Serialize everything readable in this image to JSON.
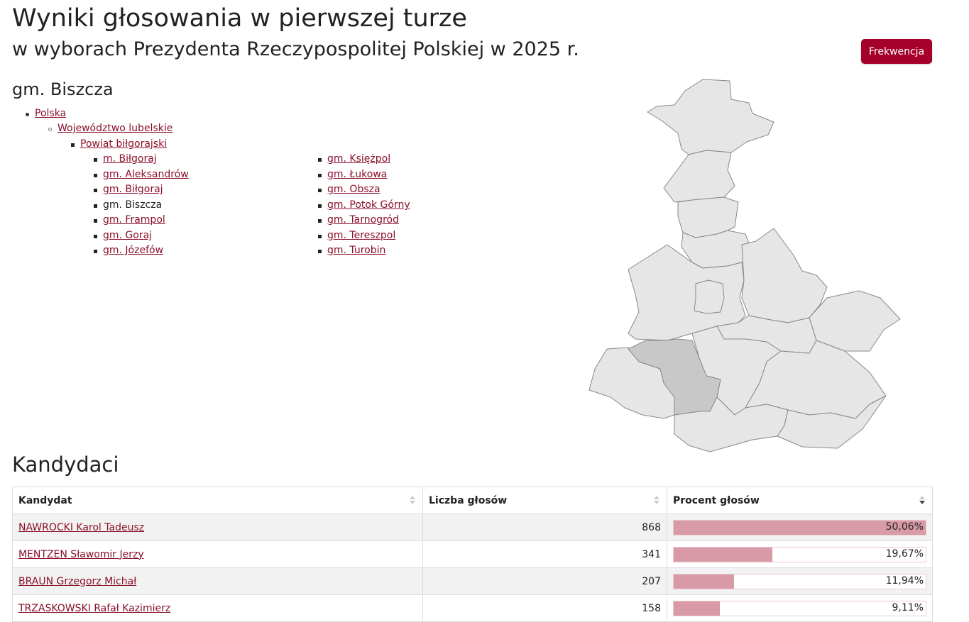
{
  "header": {
    "title_line1": "Wyniki głosowania w pierwszej turze",
    "title_line2": "w wyborach Prezydenta Rzeczypospolitej Polskiej w 2025 r.",
    "frekwencja_button": "Frekwencja"
  },
  "location": {
    "title": "gm. Biszcza",
    "breadcrumb": {
      "country": "Polska",
      "voivodeship": "Województwo lubelskie",
      "county": "Powiat biłgorajski"
    },
    "gminy_col1": [
      "m. Biłgoraj",
      "gm. Aleksandrów",
      "gm. Biłgoraj",
      "gm. Biszcza",
      "gm. Frampol",
      "gm. Goraj",
      "gm. Józefów"
    ],
    "gminy_col2": [
      "gm. Księżpol",
      "gm. Łukowa",
      "gm. Obsza",
      "gm. Potok Górny",
      "gm. Tarnogród",
      "gm. Tereszpol",
      "gm. Turobin"
    ],
    "current": "gm. Biszcza"
  },
  "colors": {
    "accent": "#a5002b",
    "link": "#8a0f2a",
    "bar": "#d99aa8",
    "map_fill": "#e6e6e6",
    "map_selected": "#c8c8c8"
  },
  "candidates": {
    "title": "Kandydaci",
    "columns": [
      "Kandydat",
      "Liczba głosów",
      "Procent głosów"
    ],
    "rows": [
      {
        "name": "NAWROCKI Karol Tadeusz",
        "votes": "868",
        "percent": "50,06%",
        "pct_value": 50.06
      },
      {
        "name": "MENTZEN Sławomir Jerzy",
        "votes": "341",
        "percent": "19,67%",
        "pct_value": 19.67
      },
      {
        "name": "BRAUN Grzegorz Michał",
        "votes": "207",
        "percent": "11,94%",
        "pct_value": 11.94
      },
      {
        "name": "TRZASKOWSKI Rafał Kazimierz",
        "votes": "158",
        "percent": "9,11%",
        "pct_value": 9.11
      }
    ]
  }
}
